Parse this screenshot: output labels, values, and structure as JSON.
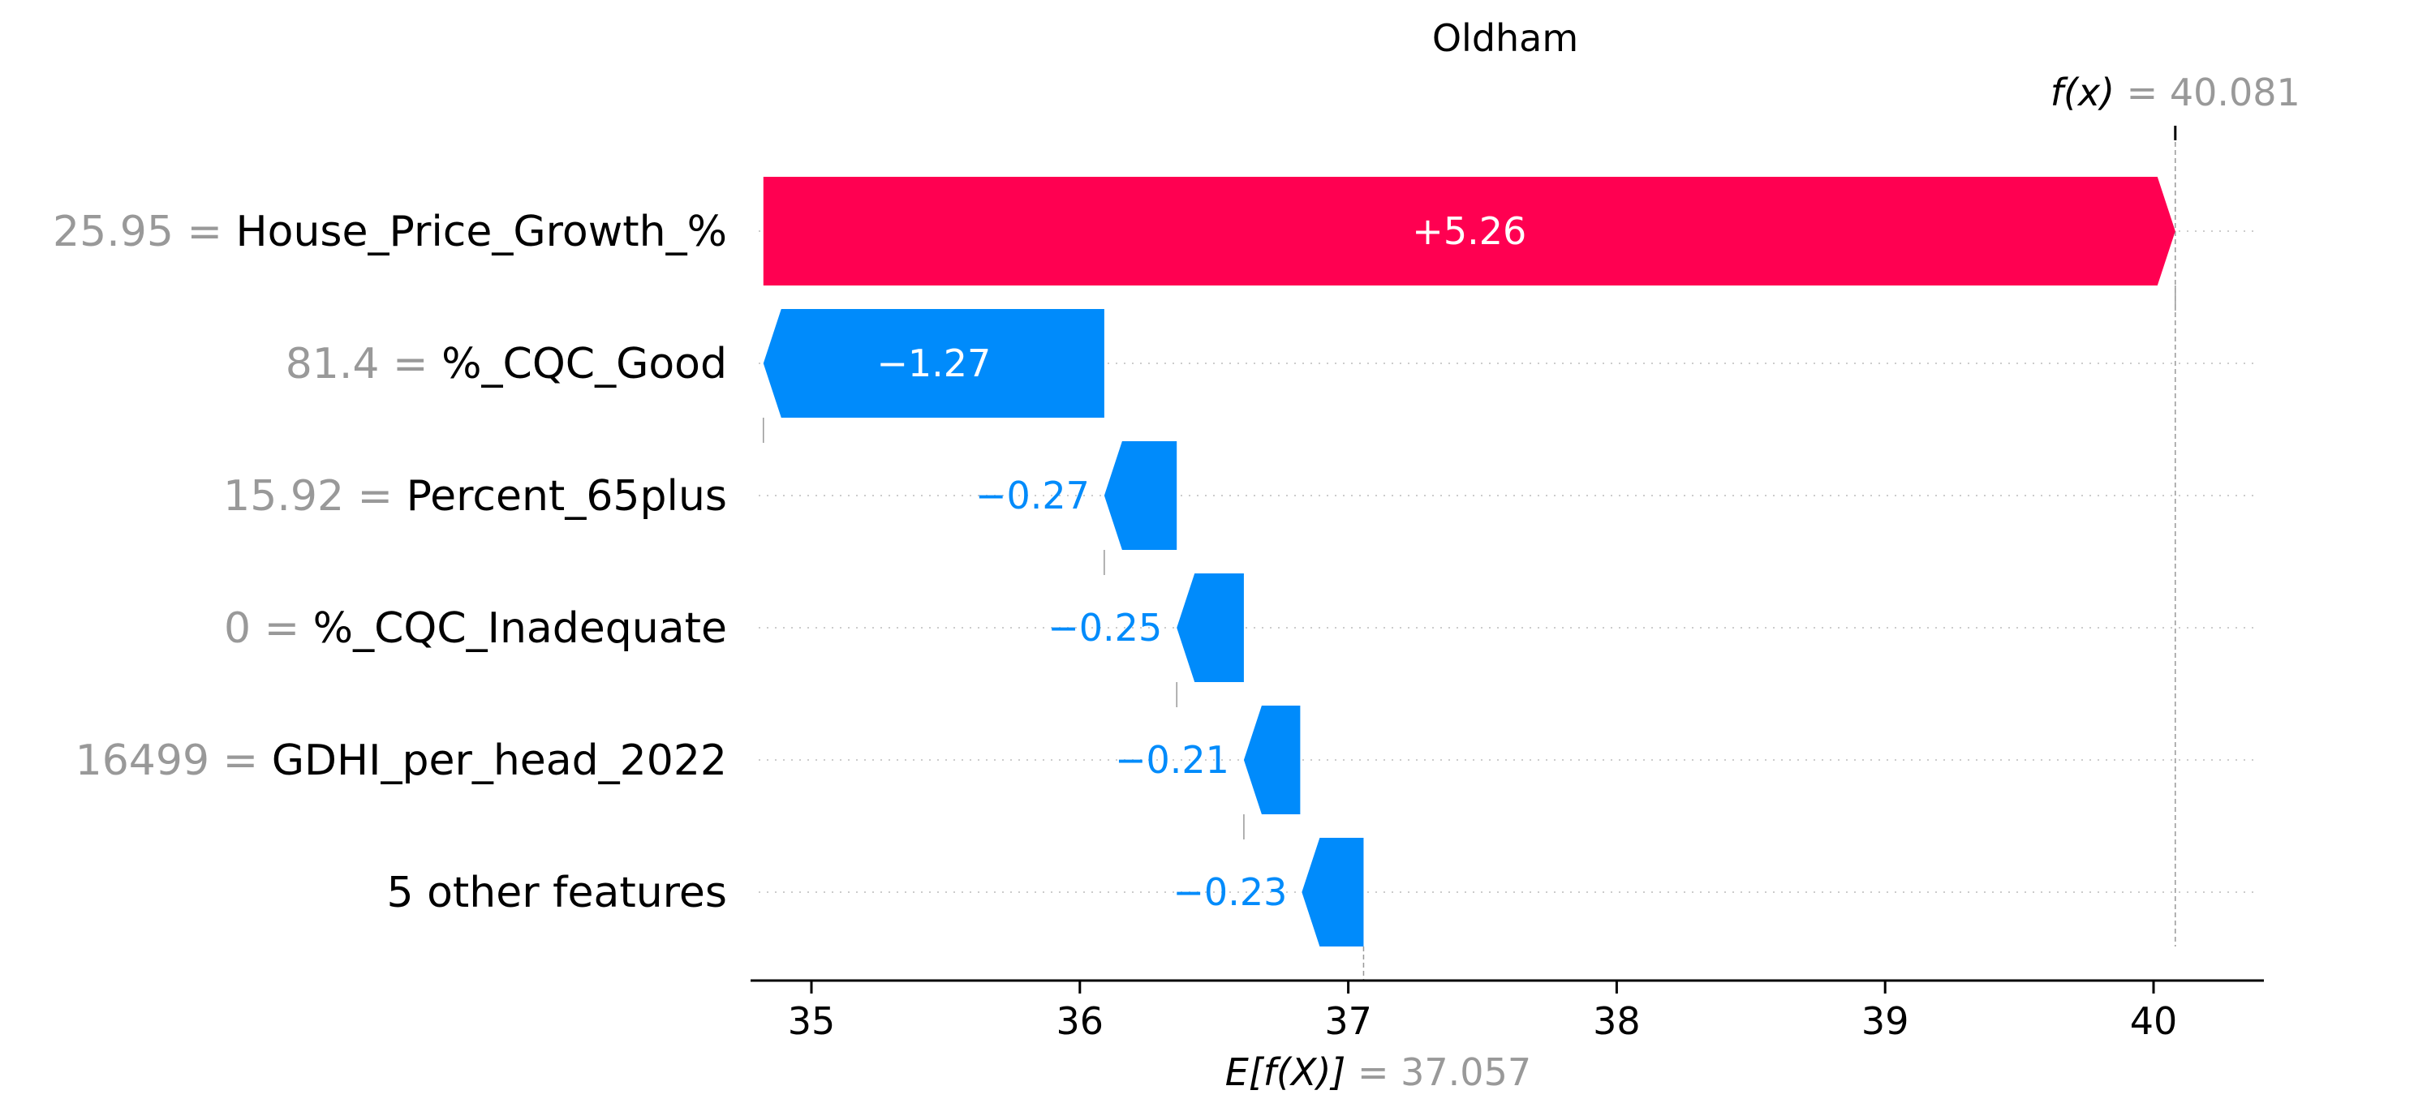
{
  "chart_data": {
    "type": "waterfall",
    "title": "Oldham",
    "base_value": 37.057,
    "base_value_label": "37.057",
    "base_value_prefix": "E[f(X)]",
    "output_value": 40.081,
    "output_value_label": "40.081",
    "output_value_prefix": "f(x)",
    "xlim": [
      34.8,
      40.4
    ],
    "x_ticks": [
      35,
      36,
      37,
      38,
      39,
      40
    ],
    "x_tick_labels": [
      "35",
      "36",
      "37",
      "38",
      "39",
      "40"
    ],
    "features": [
      {
        "value": "25.95",
        "name": "House_Price_Growth_%",
        "contribution": 5.26,
        "label": "+5.26",
        "start": 34.821
      },
      {
        "value": "81.4",
        "name": "%_CQC_Good",
        "contribution": -1.27,
        "label": "−1.27",
        "start": 36.091
      },
      {
        "value": "15.92",
        "name": "Percent_65plus",
        "contribution": -0.27,
        "label": "−0.27",
        "start": 36.361
      },
      {
        "value": "0",
        "name": "%_CQC_Inadequate",
        "contribution": -0.25,
        "label": "−0.25",
        "start": 36.611
      },
      {
        "value": "16499",
        "name": "GDHI_per_head_2022",
        "contribution": -0.21,
        "label": "−0.21",
        "start": 36.821
      },
      {
        "value": "",
        "name": "5 other features",
        "contribution": -0.23,
        "label": "−0.23",
        "start": 37.057
      }
    ],
    "colors": {
      "positive": "#ff0051",
      "negative": "#008bfb",
      "value_text": "#999999",
      "axis": "#000000",
      "grid": "#cccccc"
    }
  }
}
